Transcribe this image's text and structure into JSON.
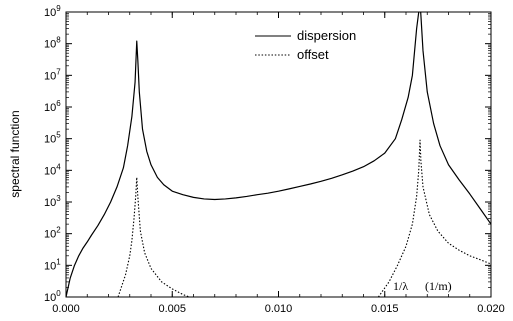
{
  "chart_data": {
    "type": "line",
    "title": "",
    "xlabel": "1/λ    (1/m)",
    "ylabel": "spectral function",
    "xlim": [
      0.0,
      0.02
    ],
    "ylim_log10": [
      0,
      9
    ],
    "yscale": "log",
    "grid": false,
    "legend_position": "top-center",
    "x_ticks": [
      "0.000",
      "0.005",
      "0.010",
      "0.015",
      "0.020"
    ],
    "x_tick_values": [
      0.0,
      0.005,
      0.01,
      0.015,
      0.02
    ],
    "y_ticks": [
      {
        "base": "10",
        "exp": "0"
      },
      {
        "base": "10",
        "exp": "1"
      },
      {
        "base": "10",
        "exp": "2"
      },
      {
        "base": "10",
        "exp": "3"
      },
      {
        "base": "10",
        "exp": "4"
      },
      {
        "base": "10",
        "exp": "5"
      },
      {
        "base": "10",
        "exp": "6"
      },
      {
        "base": "10",
        "exp": "7"
      },
      {
        "base": "10",
        "exp": "8"
      },
      {
        "base": "10",
        "exp": "9"
      }
    ],
    "series": [
      {
        "name": "dispersion",
        "style": "solid",
        "color": "#000000",
        "x": [
          0.0,
          0.0002,
          0.0004,
          0.0006,
          0.0008,
          0.001,
          0.0012,
          0.0015,
          0.0018,
          0.0021,
          0.0024,
          0.0027,
          0.0029,
          0.0031,
          0.00325,
          0.00333,
          0.00338,
          0.00345,
          0.0036,
          0.0038,
          0.004,
          0.0043,
          0.0046,
          0.005,
          0.0055,
          0.006,
          0.0065,
          0.007,
          0.0075,
          0.008,
          0.0085,
          0.009,
          0.0095,
          0.01,
          0.0105,
          0.011,
          0.0115,
          0.012,
          0.0125,
          0.013,
          0.0135,
          0.014,
          0.0145,
          0.015,
          0.0155,
          0.0158,
          0.0161,
          0.0163,
          0.0165,
          0.0166,
          0.01666,
          0.0167,
          0.0168,
          0.017,
          0.0173,
          0.0176,
          0.018,
          0.0185,
          0.019,
          0.0195,
          0.02
        ],
        "y": [
          1.0,
          4.0,
          10,
          20,
          35,
          55,
          90,
          180,
          400,
          1000,
          3000,
          12000,
          60000,
          500000,
          6000000,
          120000000,
          30000000,
          3000000,
          200000,
          40000,
          15000,
          6000,
          3500,
          2200,
          1700,
          1400,
          1250,
          1200,
          1250,
          1350,
          1500,
          1700,
          1900,
          2200,
          2600,
          3100,
          3700,
          4500,
          5600,
          7200,
          9500,
          13000,
          20000,
          35000,
          100000,
          400000,
          2000000,
          10000000,
          300000000,
          1000000000,
          2000000000,
          800000000,
          60000000,
          3000000,
          300000,
          60000,
          15000,
          5000,
          1800,
          600,
          200
        ]
      },
      {
        "name": "offset",
        "style": "dotted",
        "color": "#000000",
        "x": [
          0.00245,
          0.0026,
          0.0028,
          0.003,
          0.0031,
          0.0032,
          0.00328,
          0.00333,
          0.00338,
          0.0035,
          0.0037,
          0.004,
          0.0045,
          0.005,
          0.0055,
          0.0058,
          0.0147,
          0.0152,
          0.0156,
          0.016,
          0.0163,
          0.0165,
          0.0166,
          0.01666,
          0.0167,
          0.0168,
          0.0171,
          0.0175,
          0.018,
          0.0185,
          0.019,
          0.0195,
          0.02
        ],
        "y": [
          1.0,
          2,
          5,
          20,
          60,
          300,
          1500,
          6000,
          1500,
          120,
          25,
          8,
          3,
          1.8,
          1.2,
          1.0,
          1.0,
          3,
          10,
          40,
          200,
          1500,
          10000,
          90000,
          20000,
          3000,
          400,
          120,
          50,
          30,
          20,
          15,
          11
        ]
      }
    ],
    "annotations": [
      "1/λ",
      "(1/m)"
    ]
  }
}
